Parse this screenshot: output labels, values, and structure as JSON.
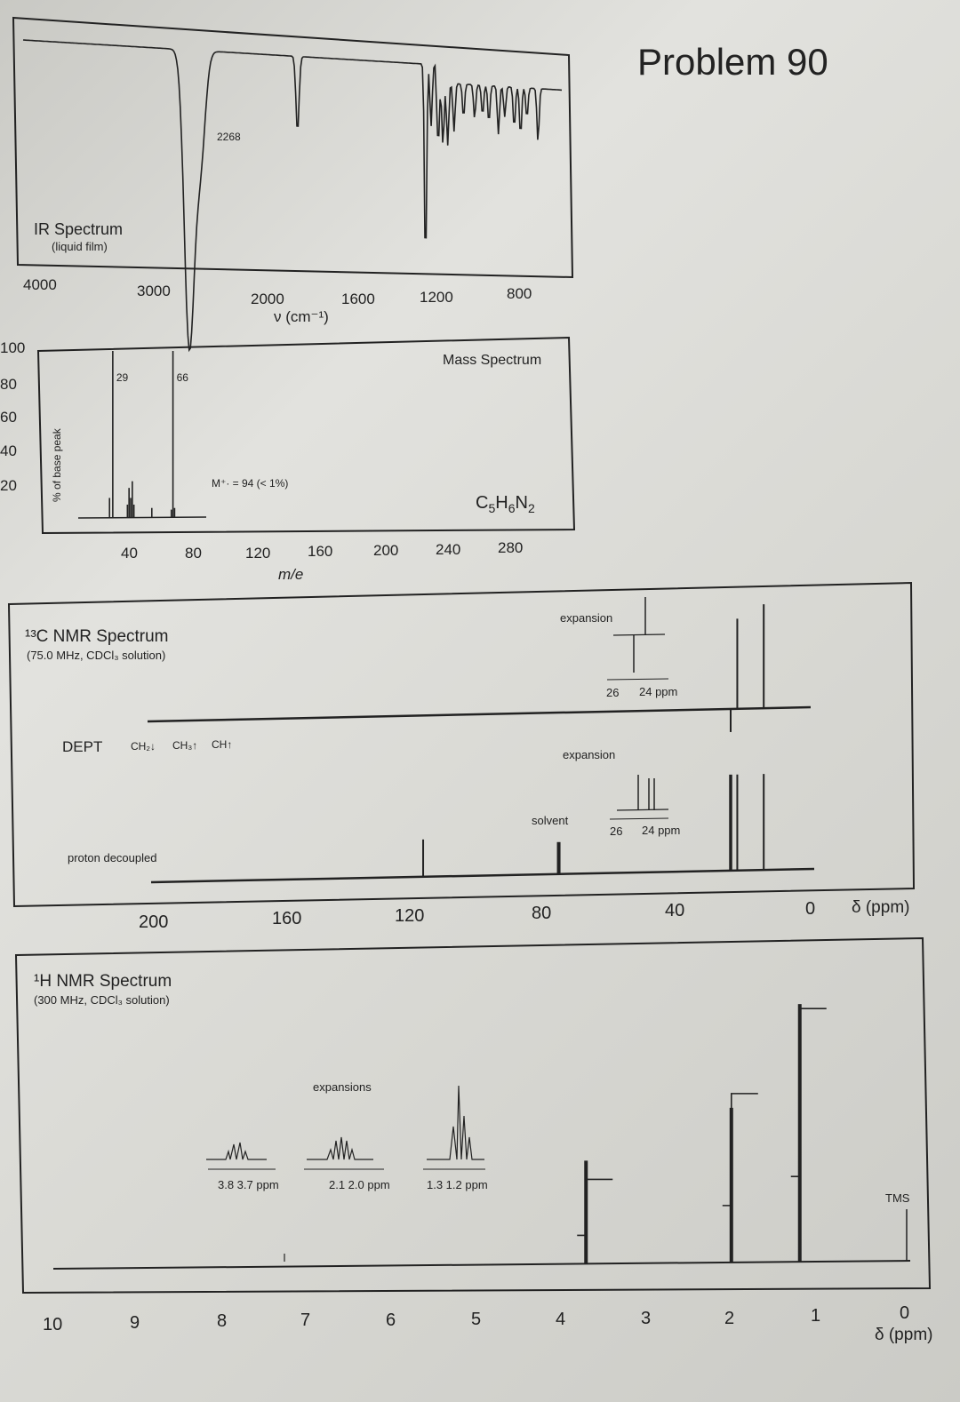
{
  "page_title": "Problem 90",
  "chart_data": [
    {
      "type": "line",
      "title": "IR Spectrum",
      "subtitle": "(liquid film)",
      "xlabel": "ν (cm⁻¹)",
      "x_ticks": [
        "4000",
        "3000",
        "2000",
        "1600",
        "1200",
        "800"
      ],
      "peak_labels": [
        {
          "x": 2268,
          "label": "2268"
        }
      ],
      "peaks_cm": [
        2960,
        2940,
        2880,
        2268,
        1460,
        1425,
        1380,
        1350,
        1320,
        1280,
        1220,
        1150,
        1100,
        1060,
        1000,
        960,
        900,
        860,
        820,
        750
      ],
      "xlim": [
        4000,
        600
      ]
    },
    {
      "type": "bar",
      "title": "Mass Spectrum",
      "xlabel": "m/e",
      "ylabel": "% of base peak",
      "x_ticks": [
        "40",
        "80",
        "120",
        "160",
        "200",
        "240",
        "280"
      ],
      "y_ticks": [
        "100",
        "80",
        "60",
        "40",
        "20"
      ],
      "xlim": [
        10,
        300
      ],
      "ylim": [
        0,
        100
      ],
      "peaks": [
        {
          "mz": 27,
          "intensity": 12
        },
        {
          "mz": 29,
          "intensity": 100,
          "label": "29"
        },
        {
          "mz": 38,
          "intensity": 8
        },
        {
          "mz": 39,
          "intensity": 18
        },
        {
          "mz": 40,
          "intensity": 12
        },
        {
          "mz": 41,
          "intensity": 22
        },
        {
          "mz": 42,
          "intensity": 8
        },
        {
          "mz": 53,
          "intensity": 6
        },
        {
          "mz": 65,
          "intensity": 5
        },
        {
          "mz": 66,
          "intensity": 100,
          "label": "66"
        },
        {
          "mz": 67,
          "intensity": 6
        }
      ],
      "molecular_ion": "M⁺· = 94 (< 1%)",
      "formula": {
        "c": "C",
        "c_n": "5",
        "h": "H",
        "h_n": "6",
        "n": "N",
        "n_n": "2"
      }
    },
    {
      "type": "line",
      "title": "¹³C NMR Spectrum",
      "subtitle": "(75.0 MHz, CDCl₃ solution)",
      "xlabel": "δ (ppm)",
      "x_ticks": [
        "200",
        "160",
        "120",
        "80",
        "40",
        "0"
      ],
      "xlim": [
        220,
        0
      ],
      "dept_label": "DEPT",
      "dept_legend": [
        "CH₂↓",
        "CH₃↑",
        "CH↑"
      ],
      "proton_decoupled_label": "proton decoupled",
      "solvent_label": "solvent",
      "expansion_label": "expansion",
      "expansion_ticks": [
        "26",
        "24 ppm"
      ],
      "dept_peaks": [
        {
          "ppm": 25.0,
          "intensity": -20,
          "label": "CH"
        },
        {
          "ppm": 23.0,
          "intensity": 78,
          "label": "CH₂"
        },
        {
          "ppm": 15.0,
          "intensity": 90,
          "label": "CH₃"
        }
      ],
      "decoupled_peaks": [
        {
          "ppm": 118.0,
          "intensity": 35
        },
        {
          "ppm": 77.0,
          "intensity": 30,
          "label": "solvent"
        },
        {
          "ppm": 25.2,
          "intensity": 90
        },
        {
          "ppm": 24.8,
          "intensity": 90
        },
        {
          "ppm": 23.0,
          "intensity": 90
        },
        {
          "ppm": 15.0,
          "intensity": 90
        }
      ]
    },
    {
      "type": "line",
      "title": "¹H NMR Spectrum",
      "subtitle": "(300 MHz, CDCl₃ solution)",
      "xlabel": "δ (ppm)",
      "x_ticks": [
        "10",
        "9",
        "8",
        "7",
        "6",
        "5",
        "4",
        "3",
        "2",
        "1",
        "0"
      ],
      "xlim": [
        10,
        0
      ],
      "expansions_label": "expansions",
      "expansion_ranges": [
        "3.8 3.7 ppm",
        "2.1 2.0 ppm",
        "1.3 1.2 ppm"
      ],
      "tms_label": "TMS",
      "signals": [
        {
          "ppm": 3.75,
          "height": 40,
          "integral_steps": 1
        },
        {
          "ppm": 2.05,
          "height": 60,
          "integral_steps": 2
        },
        {
          "ppm": 1.25,
          "height": 100,
          "integral_steps": 3
        },
        {
          "ppm": 0.0,
          "height": 20,
          "label": "TMS"
        }
      ]
    }
  ]
}
